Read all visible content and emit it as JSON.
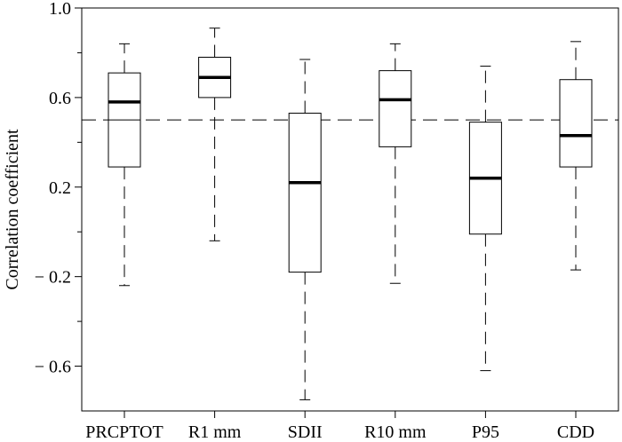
{
  "chart_data": {
    "type": "boxplot",
    "ylabel": "Correlation  coefficient",
    "ylim": [
      -0.8,
      1.0
    ],
    "y_tick_labels": [
      "1.0",
      "0.6",
      "0.2",
      "− 0.2",
      "− 0.6"
    ],
    "y_tick_values": [
      1.0,
      0.6,
      0.2,
      -0.2,
      -0.6
    ],
    "y_minor_ticks": [
      0.8,
      0.4,
      0.0,
      -0.4
    ],
    "reference_line": 0.5,
    "categories": [
      "PRCPTOT",
      "R1 mm",
      "SDII",
      "R10 mm",
      "P95",
      "CDD"
    ],
    "boxes": [
      {
        "whisker_low": -0.24,
        "q1": 0.29,
        "median": 0.58,
        "q3": 0.71,
        "whisker_high": 0.84,
        "line_value": 0.5
      },
      {
        "whisker_low": -0.04,
        "q1": 0.6,
        "median": 0.69,
        "q3": 0.78,
        "whisker_high": 0.91
      },
      {
        "whisker_low": -0.75,
        "q1": -0.18,
        "median": 0.22,
        "q3": 0.53,
        "whisker_high": 0.77
      },
      {
        "whisker_low": -0.23,
        "q1": 0.38,
        "median": 0.59,
        "q3": 0.72,
        "whisker_high": 0.84
      },
      {
        "whisker_low": -0.62,
        "q1": -0.01,
        "median": 0.24,
        "q3": 0.49,
        "whisker_high": 0.74
      },
      {
        "whisker_low": -0.17,
        "q1": 0.29,
        "median": 0.43,
        "q3": 0.68,
        "whisker_high": 0.85
      }
    ]
  }
}
